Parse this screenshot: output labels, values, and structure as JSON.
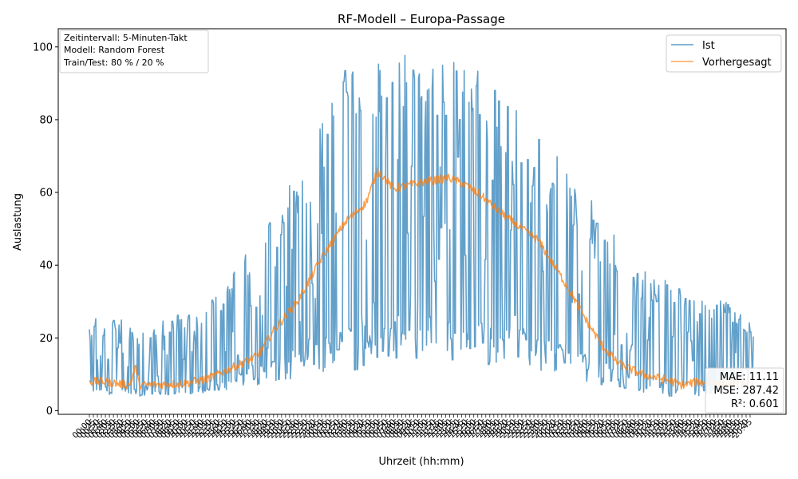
{
  "chart_data": {
    "type": "line",
    "title": "RF-Modell – Europa-Passage",
    "xlabel": "Uhrzeit (hh:mm)",
    "ylabel": "Auslastung",
    "ylim": [
      -1,
      105
    ],
    "yticks": [
      0,
      20,
      40,
      60,
      80,
      100
    ],
    "grid": false,
    "legend": {
      "placement": "top-right",
      "entries": [
        {
          "name": "Ist",
          "color": "#1f77b4"
        },
        {
          "name": "Vorhergesagt",
          "color": "#ff7f0e"
        }
      ]
    },
    "info_box": [
      "Zeitintervall: 5-Minuten-Takt",
      "Modell: Random Forest",
      "Train/Test: 80 % / 20 %"
    ],
    "metrics_box": [
      "MAE: 11.11",
      "MSE: 287.42",
      "R²: 0.601"
    ],
    "x_points": 830,
    "series": [
      {
        "name": "Ist",
        "color": "#1f77b4",
        "profile": [
          [
            0,
            5,
            26
          ],
          [
            20,
            4,
            28
          ],
          [
            60,
            4,
            22
          ],
          [
            100,
            4,
            26
          ],
          [
            150,
            5,
            30
          ],
          [
            200,
            6,
            45
          ],
          [
            250,
            8,
            62
          ],
          [
            280,
            12,
            75
          ],
          [
            300,
            10,
            90
          ],
          [
            330,
            11,
            99
          ],
          [
            380,
            13,
            99
          ],
          [
            400,
            14,
            99
          ],
          [
            440,
            14,
            97
          ],
          [
            470,
            12,
            96
          ],
          [
            500,
            12,
            95
          ],
          [
            530,
            15,
            85
          ],
          [
            560,
            11,
            76
          ],
          [
            600,
            9,
            66
          ],
          [
            640,
            7,
            54
          ],
          [
            680,
            5,
            40
          ],
          [
            720,
            4,
            36
          ],
          [
            760,
            4,
            31
          ],
          [
            800,
            4,
            30
          ],
          [
            829,
            5,
            26
          ]
        ]
      },
      {
        "name": "Vorhergesagt",
        "color": "#ff7f0e",
        "profile": [
          [
            0,
            8
          ],
          [
            20,
            8
          ],
          [
            50,
            7
          ],
          [
            58,
            12
          ],
          [
            62,
            7
          ],
          [
            120,
            7.5
          ],
          [
            150,
            9
          ],
          [
            180,
            12
          ],
          [
            210,
            15
          ],
          [
            230,
            22
          ],
          [
            260,
            30
          ],
          [
            290,
            42
          ],
          [
            320,
            52
          ],
          [
            345,
            57
          ],
          [
            360,
            66
          ],
          [
            380,
            61
          ],
          [
            420,
            63
          ],
          [
            450,
            64
          ],
          [
            470,
            62
          ],
          [
            490,
            59
          ],
          [
            510,
            55
          ],
          [
            540,
            50
          ],
          [
            560,
            47
          ],
          [
            580,
            40
          ],
          [
            600,
            33
          ],
          [
            620,
            25
          ],
          [
            640,
            18
          ],
          [
            660,
            13
          ],
          [
            690,
            10
          ],
          [
            720,
            8.5
          ],
          [
            740,
            7
          ],
          [
            760,
            8
          ],
          [
            800,
            7.5
          ],
          [
            829,
            8
          ]
        ]
      }
    ]
  }
}
